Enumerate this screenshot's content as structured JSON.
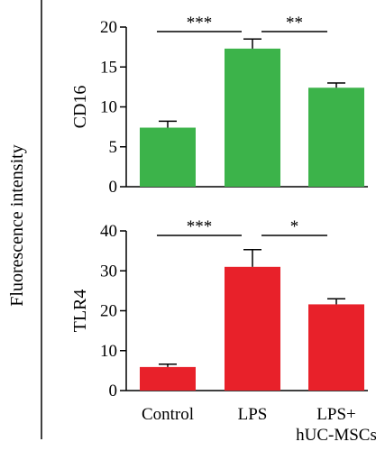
{
  "figure": {
    "shared_ylabel": "Fluorescence intensity"
  },
  "chart_data": [
    {
      "type": "bar",
      "categories": [
        "Control",
        "LPS",
        "LPS+ hUC-MSCs"
      ],
      "values": [
        7.4,
        17.3,
        12.4
      ],
      "errors": [
        0.8,
        1.2,
        0.6
      ],
      "title": "",
      "xlabel": "",
      "ylabel": "CD16",
      "ylim": [
        0,
        20
      ],
      "yticks": [
        0,
        5,
        10,
        15,
        20
      ],
      "grid": false,
      "bar_color": "#3cb34a",
      "significance": [
        {
          "from": 0,
          "to": 1,
          "label": "***"
        },
        {
          "from": 1,
          "to": 2,
          "label": "**"
        }
      ]
    },
    {
      "type": "bar",
      "categories": [
        "Control",
        "LPS",
        "LPS+ hUC-MSCs"
      ],
      "category_lines": [
        [
          "Control"
        ],
        [
          "LPS"
        ],
        [
          "LPS+",
          "hUC-MSCs"
        ]
      ],
      "values": [
        5.9,
        31.0,
        21.6
      ],
      "errors": [
        0.7,
        4.3,
        1.4
      ],
      "title": "",
      "xlabel": "",
      "ylabel": "TLR4",
      "ylim": [
        0,
        40
      ],
      "yticks": [
        0,
        10,
        20,
        30,
        40
      ],
      "grid": false,
      "bar_color": "#e8212a",
      "significance": [
        {
          "from": 0,
          "to": 1,
          "label": "***"
        },
        {
          "from": 1,
          "to": 2,
          "label": "*"
        }
      ]
    }
  ]
}
